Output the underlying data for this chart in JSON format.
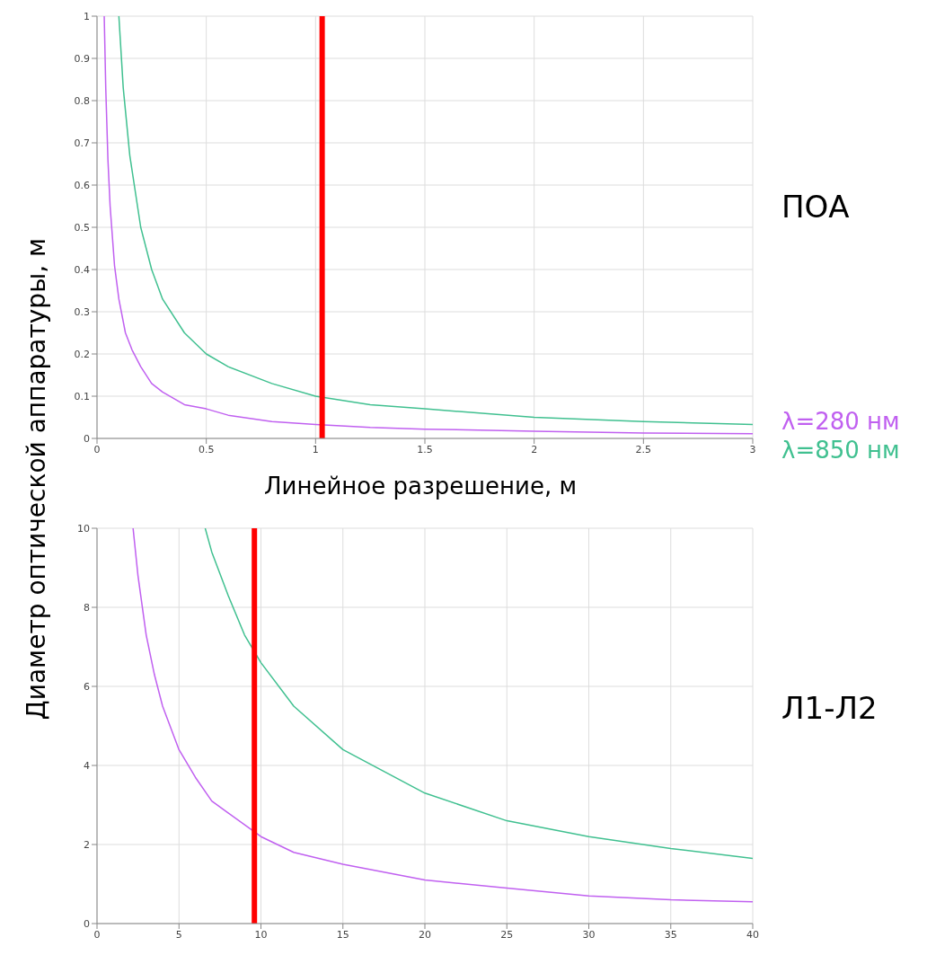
{
  "chart_data": [
    {
      "type": "line",
      "annotations": [
        "ПОА"
      ],
      "xlabel": "Линейное разрешение, м",
      "ylabel": "Диаметр оптической аппаратуры, м",
      "xlim": [
        0,
        3
      ],
      "xticks": [
        0,
        0.5,
        1,
        1.5,
        2,
        2.5,
        3
      ],
      "ylim": [
        0,
        1
      ],
      "yticks": [
        0,
        0.1,
        0.2,
        0.3,
        0.4,
        0.5,
        0.6,
        0.7,
        0.8,
        0.9,
        1
      ],
      "grid": true,
      "legend": "bottom right",
      "marker": "none",
      "ref_lines": [
        {
          "axis": "x",
          "value": 1.03,
          "color": "#ff0000"
        }
      ],
      "series": [
        {
          "name": "λ=280 нм",
          "color": "#c060f0",
          "x": [
            0.033,
            0.04,
            0.05,
            0.06,
            0.08,
            0.1,
            0.13,
            0.16,
            0.2,
            0.25,
            0.3,
            0.4,
            0.5,
            0.6,
            0.8,
            1,
            1.25,
            1.5,
            2,
            2.5,
            3
          ],
          "values": [
            1,
            0.83,
            0.66,
            0.55,
            0.41,
            0.33,
            0.25,
            0.21,
            0.17,
            0.13,
            0.11,
            0.08,
            0.07,
            0.055,
            0.04,
            0.033,
            0.026,
            0.022,
            0.017,
            0.013,
            0.011
          ]
        },
        {
          "name": "λ=850 нм",
          "color": "#40c090",
          "x": [
            0.1,
            0.12,
            0.15,
            0.2,
            0.25,
            0.3,
            0.4,
            0.5,
            0.6,
            0.8,
            1,
            1.25,
            1.5,
            2,
            2.5,
            3
          ],
          "values": [
            1,
            0.83,
            0.67,
            0.5,
            0.4,
            0.33,
            0.25,
            0.2,
            0.17,
            0.13,
            0.1,
            0.08,
            0.07,
            0.05,
            0.04,
            0.033
          ]
        }
      ]
    },
    {
      "type": "line",
      "annotations": [
        "Л1-Л2"
      ],
      "xlim": [
        0,
        40
      ],
      "xticks": [
        0,
        5,
        10,
        15,
        20,
        25,
        30,
        35,
        40
      ],
      "ylim": [
        0,
        10
      ],
      "yticks": [
        0,
        2,
        4,
        6,
        8,
        10
      ],
      "grid": true,
      "marker": "none",
      "ref_lines": [
        {
          "axis": "x",
          "value": 9.6,
          "color": "#ff0000"
        }
      ],
      "series": [
        {
          "color": "#c060f0",
          "x": [
            2.2,
            2.5,
            3,
            3.5,
            4,
            5,
            6,
            7,
            8,
            10,
            12,
            15,
            20,
            25,
            30,
            35,
            40
          ],
          "values": [
            10,
            8.8,
            7.3,
            6.3,
            5.5,
            4.4,
            3.7,
            3.1,
            2.8,
            2.2,
            1.8,
            1.5,
            1.1,
            0.9,
            0.7,
            0.6,
            0.55
          ]
        },
        {
          "color": "#40c090",
          "x": [
            6.6,
            7,
            8,
            9,
            10,
            12,
            15,
            20,
            25,
            30,
            35,
            40
          ],
          "values": [
            10,
            9.4,
            8.3,
            7.3,
            6.6,
            5.5,
            4.4,
            3.3,
            2.6,
            2.2,
            1.9,
            1.65
          ]
        }
      ]
    }
  ]
}
